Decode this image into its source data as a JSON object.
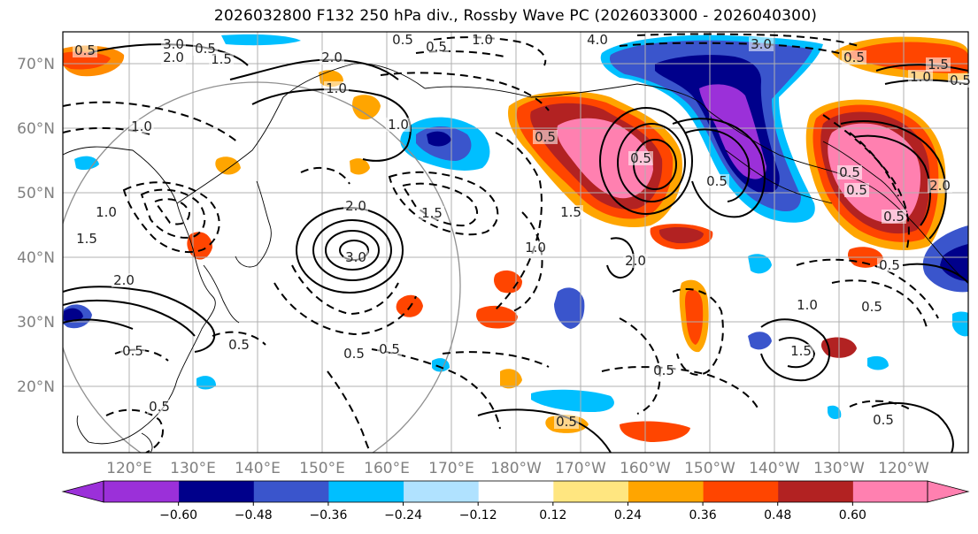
{
  "title": "2026032800 F132 250 hPa div., Rossby Wave PC (2026033000 - 2026040300)",
  "axes": {
    "lat_labels": [
      "70°N",
      "60°N",
      "50°N",
      "40°N",
      "30°N",
      "20°N"
    ],
    "lon_labels": [
      "120°E",
      "130°E",
      "140°E",
      "150°E",
      "160°E",
      "170°E",
      "180°W",
      "170°W",
      "160°W",
      "150°W",
      "140°W",
      "130°W",
      "120°W"
    ]
  },
  "colorbar": {
    "ticks": [
      "−0.60",
      "−0.48",
      "−0.36",
      "−0.24",
      "−0.12",
      "0.12",
      "0.24",
      "0.36",
      "0.48",
      "0.60"
    ],
    "colors": [
      "#9b30d9",
      "#00008b",
      "#3a55cc",
      "#00bfff",
      "#b0e2ff",
      "#ffffff",
      "#ffe680",
      "#ffa500",
      "#ff4500",
      "#b22222",
      "#ff80b0"
    ]
  },
  "contour_labels": [
    "3.0",
    "2.0",
    "0.5",
    "1.5",
    "1.0",
    "0.5",
    "2.0",
    "4.0",
    "3.0",
    "1.5",
    "1.0",
    "0.5",
    "1.0",
    "0.5",
    "1.0",
    "0.5",
    "1.0",
    "1.5",
    "2.0",
    "3.0",
    "2.0",
    "1.5",
    "0.5",
    "0.5",
    "0.5",
    "1.0",
    "1.5",
    "2.0",
    "0.5",
    "0.5",
    "0.5",
    "0.5",
    "1.0",
    "0.5",
    "0.5",
    "0.5",
    "1.5",
    "0.5",
    "0.5",
    "0.5",
    "0.5",
    "1.0",
    "0.5",
    "2.0",
    "0.5",
    "0.5"
  ],
  "colors": {
    "grid": "#b0b0b0",
    "contour": "#000000",
    "circle": "#909090",
    "coast": "#000000"
  }
}
